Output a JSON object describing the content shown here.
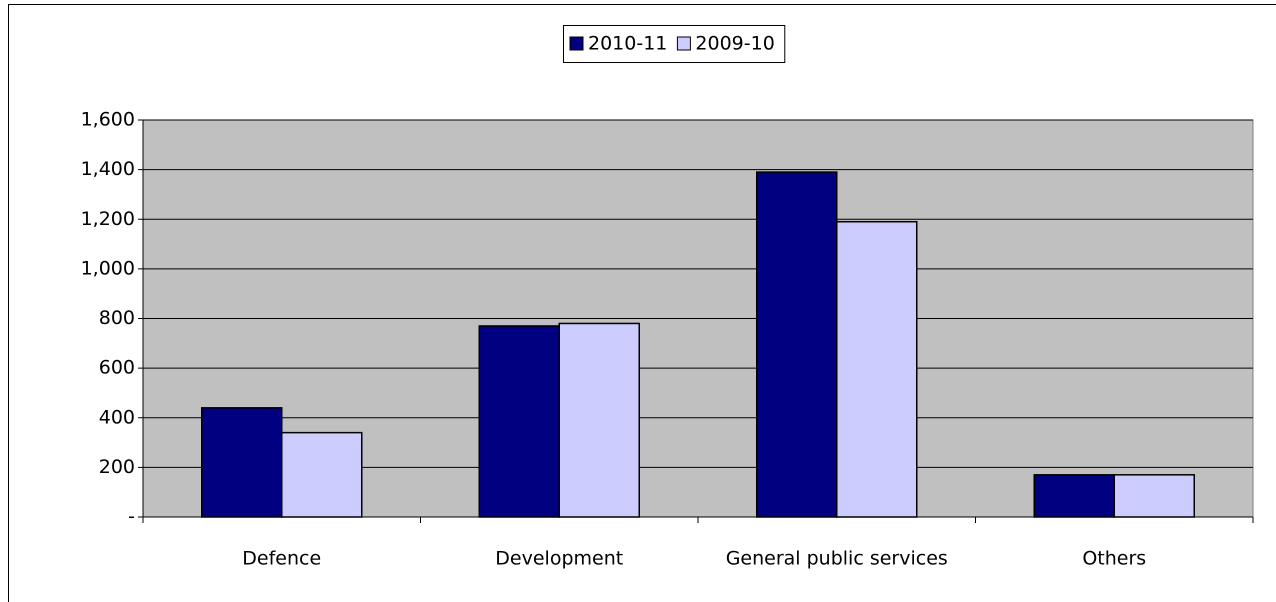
{
  "chart_data": {
    "type": "bar",
    "categories": [
      "Defence",
      "Development",
      "General public services",
      "Others"
    ],
    "series": [
      {
        "name": "2010-11",
        "color": "#000080",
        "values": [
          440,
          770,
          1390,
          170
        ]
      },
      {
        "name": "2009-10",
        "color": "#ccccff",
        "values": [
          340,
          780,
          1190,
          170
        ]
      }
    ],
    "ylim": [
      0,
      1600
    ],
    "yticks": [
      {
        "value": 0,
        "label": "-"
      },
      200,
      400,
      600,
      800,
      {
        "value": 1000,
        "label": "1,000"
      },
      {
        "value": 1200,
        "label": "1,200"
      },
      {
        "value": 1400,
        "label": "1,400"
      },
      {
        "value": 1600,
        "label": "1,600"
      }
    ],
    "grid": true,
    "legend": "top"
  }
}
